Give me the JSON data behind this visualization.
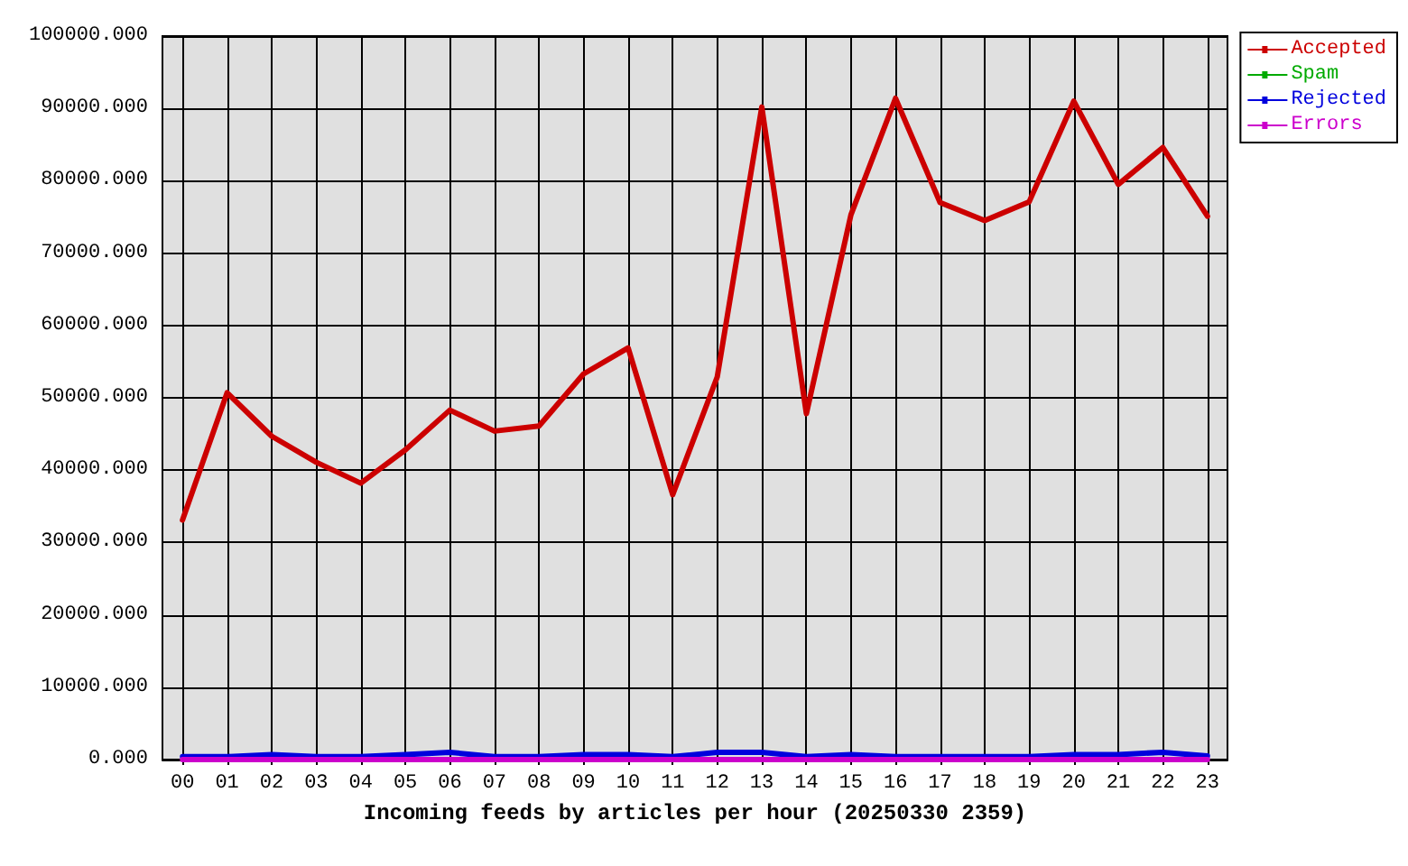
{
  "chart_data": {
    "type": "line",
    "xlabel": "Incoming feeds by articles per hour (20250330 2359)",
    "categories": [
      "00",
      "01",
      "02",
      "03",
      "04",
      "05",
      "06",
      "07",
      "08",
      "09",
      "10",
      "11",
      "12",
      "13",
      "14",
      "15",
      "16",
      "17",
      "18",
      "19",
      "20",
      "21",
      "22",
      "23"
    ],
    "series": [
      {
        "name": "Accepted",
        "color": "#cc0000",
        "values": [
          33100,
          50700,
          44700,
          41100,
          38200,
          42800,
          48300,
          45400,
          46100,
          53300,
          56900,
          36600,
          52900,
          90200,
          47800,
          75300,
          91400,
          77000,
          74500,
          77100,
          91000,
          79500,
          84600,
          75100
        ]
      },
      {
        "name": "Spam",
        "color": "#00aa00",
        "values": [
          null,
          null,
          null,
          null,
          null,
          null,
          null,
          null,
          null,
          null,
          null,
          null,
          null,
          null,
          null,
          null,
          null,
          null,
          null,
          null,
          null,
          null,
          null,
          null
        ]
      },
      {
        "name": "Rejected",
        "color": "#0000dd",
        "values": [
          400,
          400,
          700,
          400,
          400,
          700,
          1000,
          400,
          400,
          700,
          700,
          400,
          1000,
          1000,
          400,
          700,
          400,
          400,
          400,
          400,
          700,
          700,
          1000,
          500
        ]
      },
      {
        "name": "Errors",
        "color": "#cc00cc",
        "values": [
          0,
          0,
          0,
          0,
          0,
          0,
          0,
          0,
          0,
          0,
          0,
          0,
          0,
          0,
          0,
          0,
          0,
          0,
          0,
          0,
          0,
          0,
          0,
          0
        ]
      }
    ],
    "ylim": [
      0,
      100000
    ],
    "yticks": [
      {
        "value": 0,
        "label": "0.000"
      },
      {
        "value": 10000,
        "label": "10000.000"
      },
      {
        "value": 20000,
        "label": "20000.000"
      },
      {
        "value": 30000,
        "label": "30000.000"
      },
      {
        "value": 40000,
        "label": "40000.000"
      },
      {
        "value": 50000,
        "label": "50000.000"
      },
      {
        "value": 60000,
        "label": "60000.000"
      },
      {
        "value": 70000,
        "label": "70000.000"
      },
      {
        "value": 80000,
        "label": "80000.000"
      },
      {
        "value": 90000,
        "label": "90000.000"
      },
      {
        "value": 100000,
        "label": "100000.000"
      }
    ],
    "grid": true,
    "legend": "top right",
    "marker": "none",
    "line_style": "solid"
  }
}
